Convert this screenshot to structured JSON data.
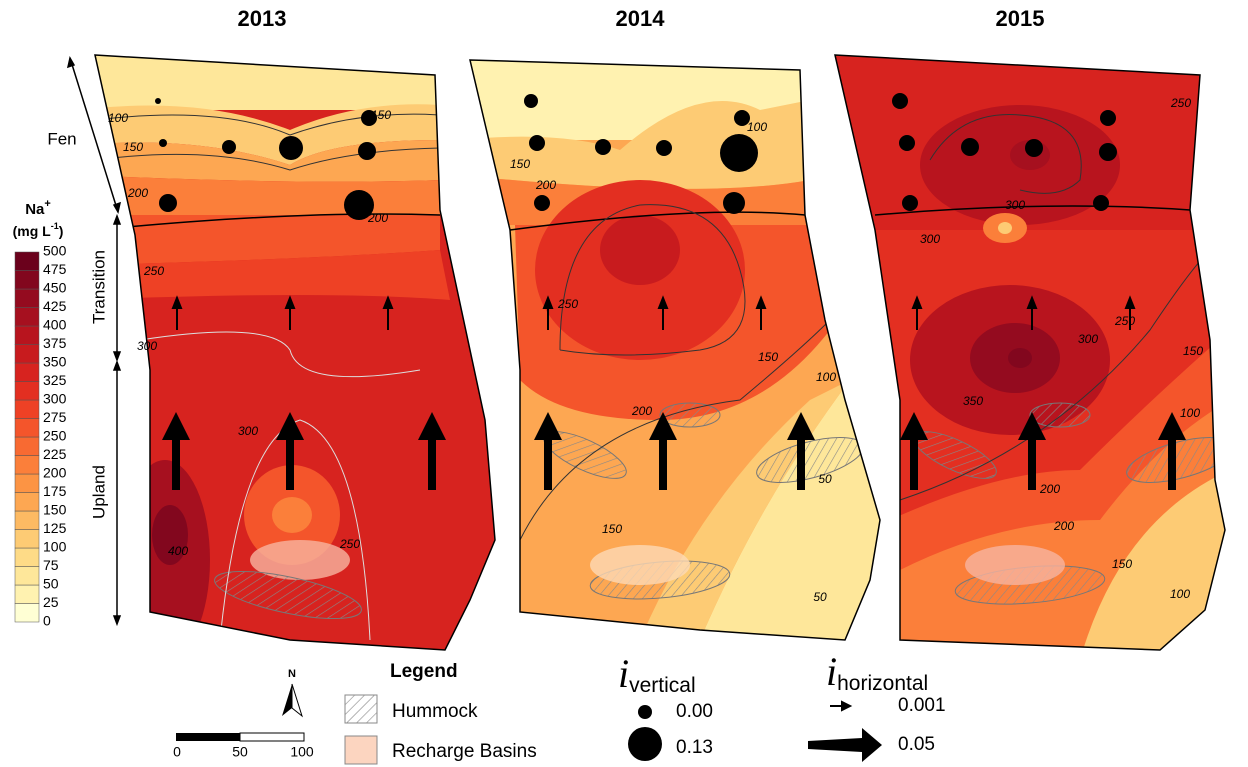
{
  "panels": [
    {
      "title": "2013",
      "contour_labels": [
        "100",
        "150",
        "150",
        "200",
        "200",
        "250",
        "300",
        "300",
        "400",
        "250"
      ]
    },
    {
      "title": "2014",
      "contour_labels": [
        "100",
        "150",
        "200",
        "250",
        "200",
        "150",
        "150",
        "100",
        "50",
        "50"
      ]
    },
    {
      "title": "2015",
      "contour_labels": [
        "250",
        "300",
        "300",
        "250",
        "200",
        "150",
        "100",
        "300",
        "350",
        "200",
        "150",
        "100"
      ]
    }
  ],
  "zones": [
    "Fen",
    "Transition",
    "Upland"
  ],
  "colorbar": {
    "title": [
      "Na",
      "+"
    ],
    "units": [
      "(mg L",
      "-1",
      ")"
    ],
    "ticks": [
      0,
      25,
      50,
      75,
      100,
      125,
      150,
      175,
      200,
      225,
      250,
      275,
      300,
      325,
      350,
      375,
      400,
      425,
      450,
      475,
      500
    ],
    "colors": [
      "#ffffd4",
      "#fff2b0",
      "#fee79a",
      "#fedb87",
      "#fdcb74",
      "#fdba63",
      "#fda752",
      "#fc9444",
      "#fb7f3a",
      "#f86a32",
      "#f4552b",
      "#ee4125",
      "#e32f21",
      "#d7231f",
      "#c81b1e",
      "#b8141e",
      "#a6101f",
      "#940b1f",
      "#82071e",
      "#6b011c"
    ]
  },
  "legend": {
    "title": "Legend",
    "items": [
      "Hummock",
      "Recharge Basins"
    ]
  },
  "i_vertical": {
    "symbol": "i",
    "subscript": "vertical",
    "labels": [
      "0.00",
      "0.13"
    ]
  },
  "i_horizontal": {
    "symbol": "i",
    "subscript": "horizontal",
    "labels": [
      "0.001",
      "0.05"
    ]
  },
  "north": "N",
  "scale_bar": [
    "0",
    "50",
    "100"
  ]
}
